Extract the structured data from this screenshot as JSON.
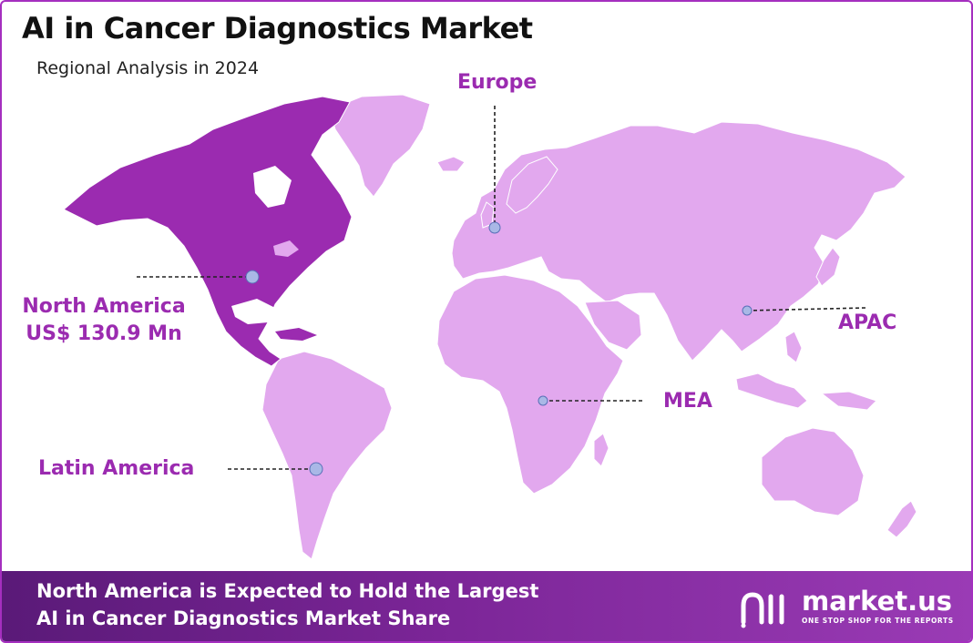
{
  "title": "AI in Cancer Diagnostics Market",
  "subtitle": "Regional Analysis in 2024",
  "regions": {
    "north_america": {
      "name": "North America",
      "value": "US$ 130.9 Mn",
      "highlighted": true
    },
    "europe": {
      "name": "Europe"
    },
    "apac": {
      "name": "APAC"
    },
    "mea": {
      "name": "MEA"
    },
    "latin_america": {
      "name": "Latin America"
    }
  },
  "colors": {
    "highlight": "#9b2bb0",
    "land": "#e2a8ee",
    "marker": "#a9b8e6",
    "label": "#9b2bb0"
  },
  "footer": {
    "line1": "North America is Expected to Hold the Largest",
    "line2": "AI in Cancer Diagnostics Market Share"
  },
  "logo": {
    "name": "market.us",
    "tagline": "ONE STOP SHOP FOR THE REPORTS",
    "icon": "market-us-logo-icon"
  }
}
